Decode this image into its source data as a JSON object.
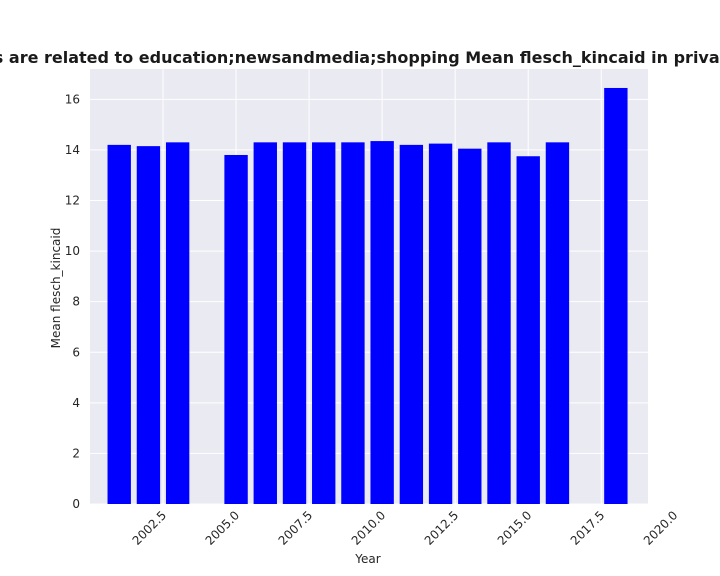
{
  "chart_data": {
    "type": "bar",
    "title": "Categories are related to education;newsandmedia;shopping Mean flesch_kincaid in privacy policies",
    "xlabel": "Year",
    "ylabel": "Mean flesch_kincaid",
    "x": [
      2001,
      2002,
      2003,
      2005,
      2006,
      2007,
      2008,
      2009,
      2010,
      2011,
      2012,
      2013,
      2014,
      2015,
      2016,
      2018
    ],
    "values": [
      14.2,
      14.15,
      14.3,
      13.8,
      14.3,
      14.3,
      14.3,
      14.3,
      14.35,
      14.2,
      14.25,
      14.05,
      14.3,
      13.75,
      14.3,
      16.45
    ],
    "xlim": [
      2000.0,
      2019.1
    ],
    "ylim": [
      0,
      17.2
    ],
    "xticks": [
      2002.5,
      2005.0,
      2007.5,
      2010.0,
      2012.5,
      2015.0,
      2017.5,
      2020.0
    ],
    "xtick_labels": [
      "2002.5",
      "2005.0",
      "2007.5",
      "2010.0",
      "2012.5",
      "2015.0",
      "2017.5",
      "2020.0"
    ],
    "yticks": [
      0,
      2,
      4,
      6,
      8,
      10,
      12,
      14,
      16
    ],
    "ytick_labels": [
      "0",
      "2",
      "4",
      "6",
      "8",
      "10",
      "12",
      "14",
      "16"
    ],
    "bar_color": "#0000ff",
    "background_color": "#eaeaf2",
    "grid": true,
    "grid_color": "#ffffff"
  }
}
